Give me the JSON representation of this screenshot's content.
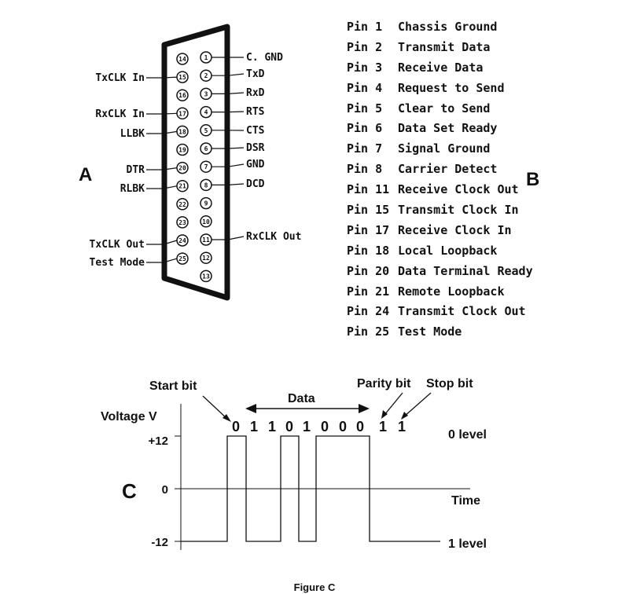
{
  "diagram": {
    "labels": {
      "connector": "A",
      "pinout": "B",
      "timing": "C"
    },
    "connector": {
      "top_row_pins": [
        "1",
        "2",
        "3",
        "4",
        "5",
        "6",
        "7",
        "8",
        "9",
        "10",
        "11",
        "12",
        "13"
      ],
      "bottom_row_pins": [
        "14",
        "15",
        "16",
        "17",
        "18",
        "19",
        "20",
        "21",
        "22",
        "23",
        "24",
        "25"
      ],
      "right_signals": [
        {
          "pin": "1",
          "label": "C. GND"
        },
        {
          "pin": "2",
          "label": "TxD"
        },
        {
          "pin": "3",
          "label": "RxD"
        },
        {
          "pin": "4",
          "label": "RTS"
        },
        {
          "pin": "5",
          "label": "CTS"
        },
        {
          "pin": "6",
          "label": "DSR"
        },
        {
          "pin": "7",
          "label": "GND"
        },
        {
          "pin": "8",
          "label": "DCD"
        },
        {
          "pin": "11",
          "label": "RxCLK Out"
        }
      ],
      "left_signals": [
        {
          "pin": "15",
          "label": "TxCLK In"
        },
        {
          "pin": "17",
          "label": "RxCLK In"
        },
        {
          "pin": "18",
          "label": "LLBK"
        },
        {
          "pin": "20",
          "label": "DTR"
        },
        {
          "pin": "21",
          "label": "RLBK"
        },
        {
          "pin": "24",
          "label": "TxCLK Out"
        },
        {
          "pin": "25",
          "label": "Test Mode"
        }
      ]
    },
    "pin_list": [
      {
        "pin": "Pin 1",
        "name": "Chassis Ground"
      },
      {
        "pin": "Pin 2",
        "name": "Transmit Data"
      },
      {
        "pin": "Pin 3",
        "name": "Receive Data"
      },
      {
        "pin": "Pin 4",
        "name": "Request to Send"
      },
      {
        "pin": "Pin 5",
        "name": "Clear to Send"
      },
      {
        "pin": "Pin 6",
        "name": "Data Set Ready"
      },
      {
        "pin": "Pin 7",
        "name": "Signal Ground"
      },
      {
        "pin": "Pin 8",
        "name": "Carrier Detect"
      },
      {
        "pin": "Pin 11",
        "name": "Receive Clock Out"
      },
      {
        "pin": "Pin 15",
        "name": "Transmit Clock In"
      },
      {
        "pin": "Pin 17",
        "name": "Receive Clock In"
      },
      {
        "pin": "Pin 18",
        "name": "Local Loopback"
      },
      {
        "pin": "Pin 20",
        "name": "Data Terminal Ready"
      },
      {
        "pin": "Pin 21",
        "name": "Remote Loopback"
      },
      {
        "pin": "Pin 24",
        "name": "Transmit Clock Out"
      },
      {
        "pin": "Pin 25",
        "name": "Test Mode"
      }
    ],
    "timing": {
      "y_axis_label": "Voltage V",
      "level_ticks": [
        "+12",
        "0",
        "-12"
      ],
      "time_label": "Time",
      "level_zero_label": "0 level",
      "level_one_label": "1 level",
      "start_bit_label": "Start bit",
      "data_label": "Data",
      "parity_bit_label": "Parity bit",
      "stop_bit_label": "Stop bit",
      "bits": [
        "0",
        "1",
        "1",
        "0",
        "1",
        "0",
        "0",
        "0",
        "1",
        "1"
      ]
    },
    "caption": "Figure C"
  }
}
